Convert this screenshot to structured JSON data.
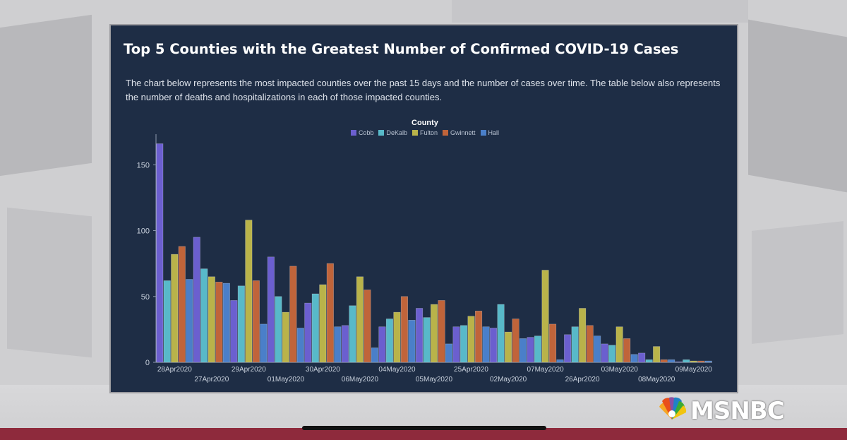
{
  "broadcast": {
    "network_logo": "MSNBC",
    "peacock_icon": "nbc-peacock-icon"
  },
  "panel": {
    "title": "Top 5 Counties with the Greatest Number of Confirmed COVID-19 Cases",
    "description": "The chart below represents the most impacted counties over the past 15 days and the number of cases over time. The table below also represents the number of deaths and hospitalizations in each of those impacted counties."
  },
  "chart_data": {
    "type": "bar",
    "legend_title": "County",
    "legend_position": "top-center",
    "grid": false,
    "ylim": [
      0,
      170
    ],
    "y_ticks": [
      0,
      50,
      100,
      150
    ],
    "categories": [
      "28Apr2020",
      "27Apr2020",
      "29Apr2020",
      "01May2020",
      "30Apr2020",
      "06May2020",
      "04May2020",
      "05May2020",
      "25Apr2020",
      "02May2020",
      "07May2020",
      "26Apr2020",
      "03May2020",
      "08May2020",
      "09May2020"
    ],
    "series": [
      {
        "name": "Cobb",
        "color": "#6b5fcf",
        "values": [
          166,
          95,
          47,
          80,
          45,
          28,
          27,
          41,
          27,
          26,
          19,
          21,
          14,
          7,
          0
        ]
      },
      {
        "name": "DeKalb",
        "color": "#58b9c9",
        "values": [
          62,
          71,
          58,
          50,
          52,
          43,
          33,
          34,
          28,
          44,
          20,
          27,
          13,
          2,
          2
        ]
      },
      {
        "name": "Fulton",
        "color": "#b9b34a",
        "values": [
          82,
          65,
          108,
          38,
          59,
          65,
          38,
          44,
          35,
          23,
          70,
          41,
          27,
          12,
          1
        ]
      },
      {
        "name": "Gwinnett",
        "color": "#c0643a",
        "values": [
          88,
          61,
          62,
          73,
          75,
          55,
          50,
          47,
          39,
          33,
          29,
          28,
          18,
          2,
          1
        ]
      },
      {
        "name": "Hall",
        "color": "#4a7fc9",
        "values": [
          63,
          60,
          29,
          26,
          27,
          11,
          32,
          14,
          27,
          18,
          2,
          20,
          6,
          2,
          1
        ]
      }
    ]
  }
}
